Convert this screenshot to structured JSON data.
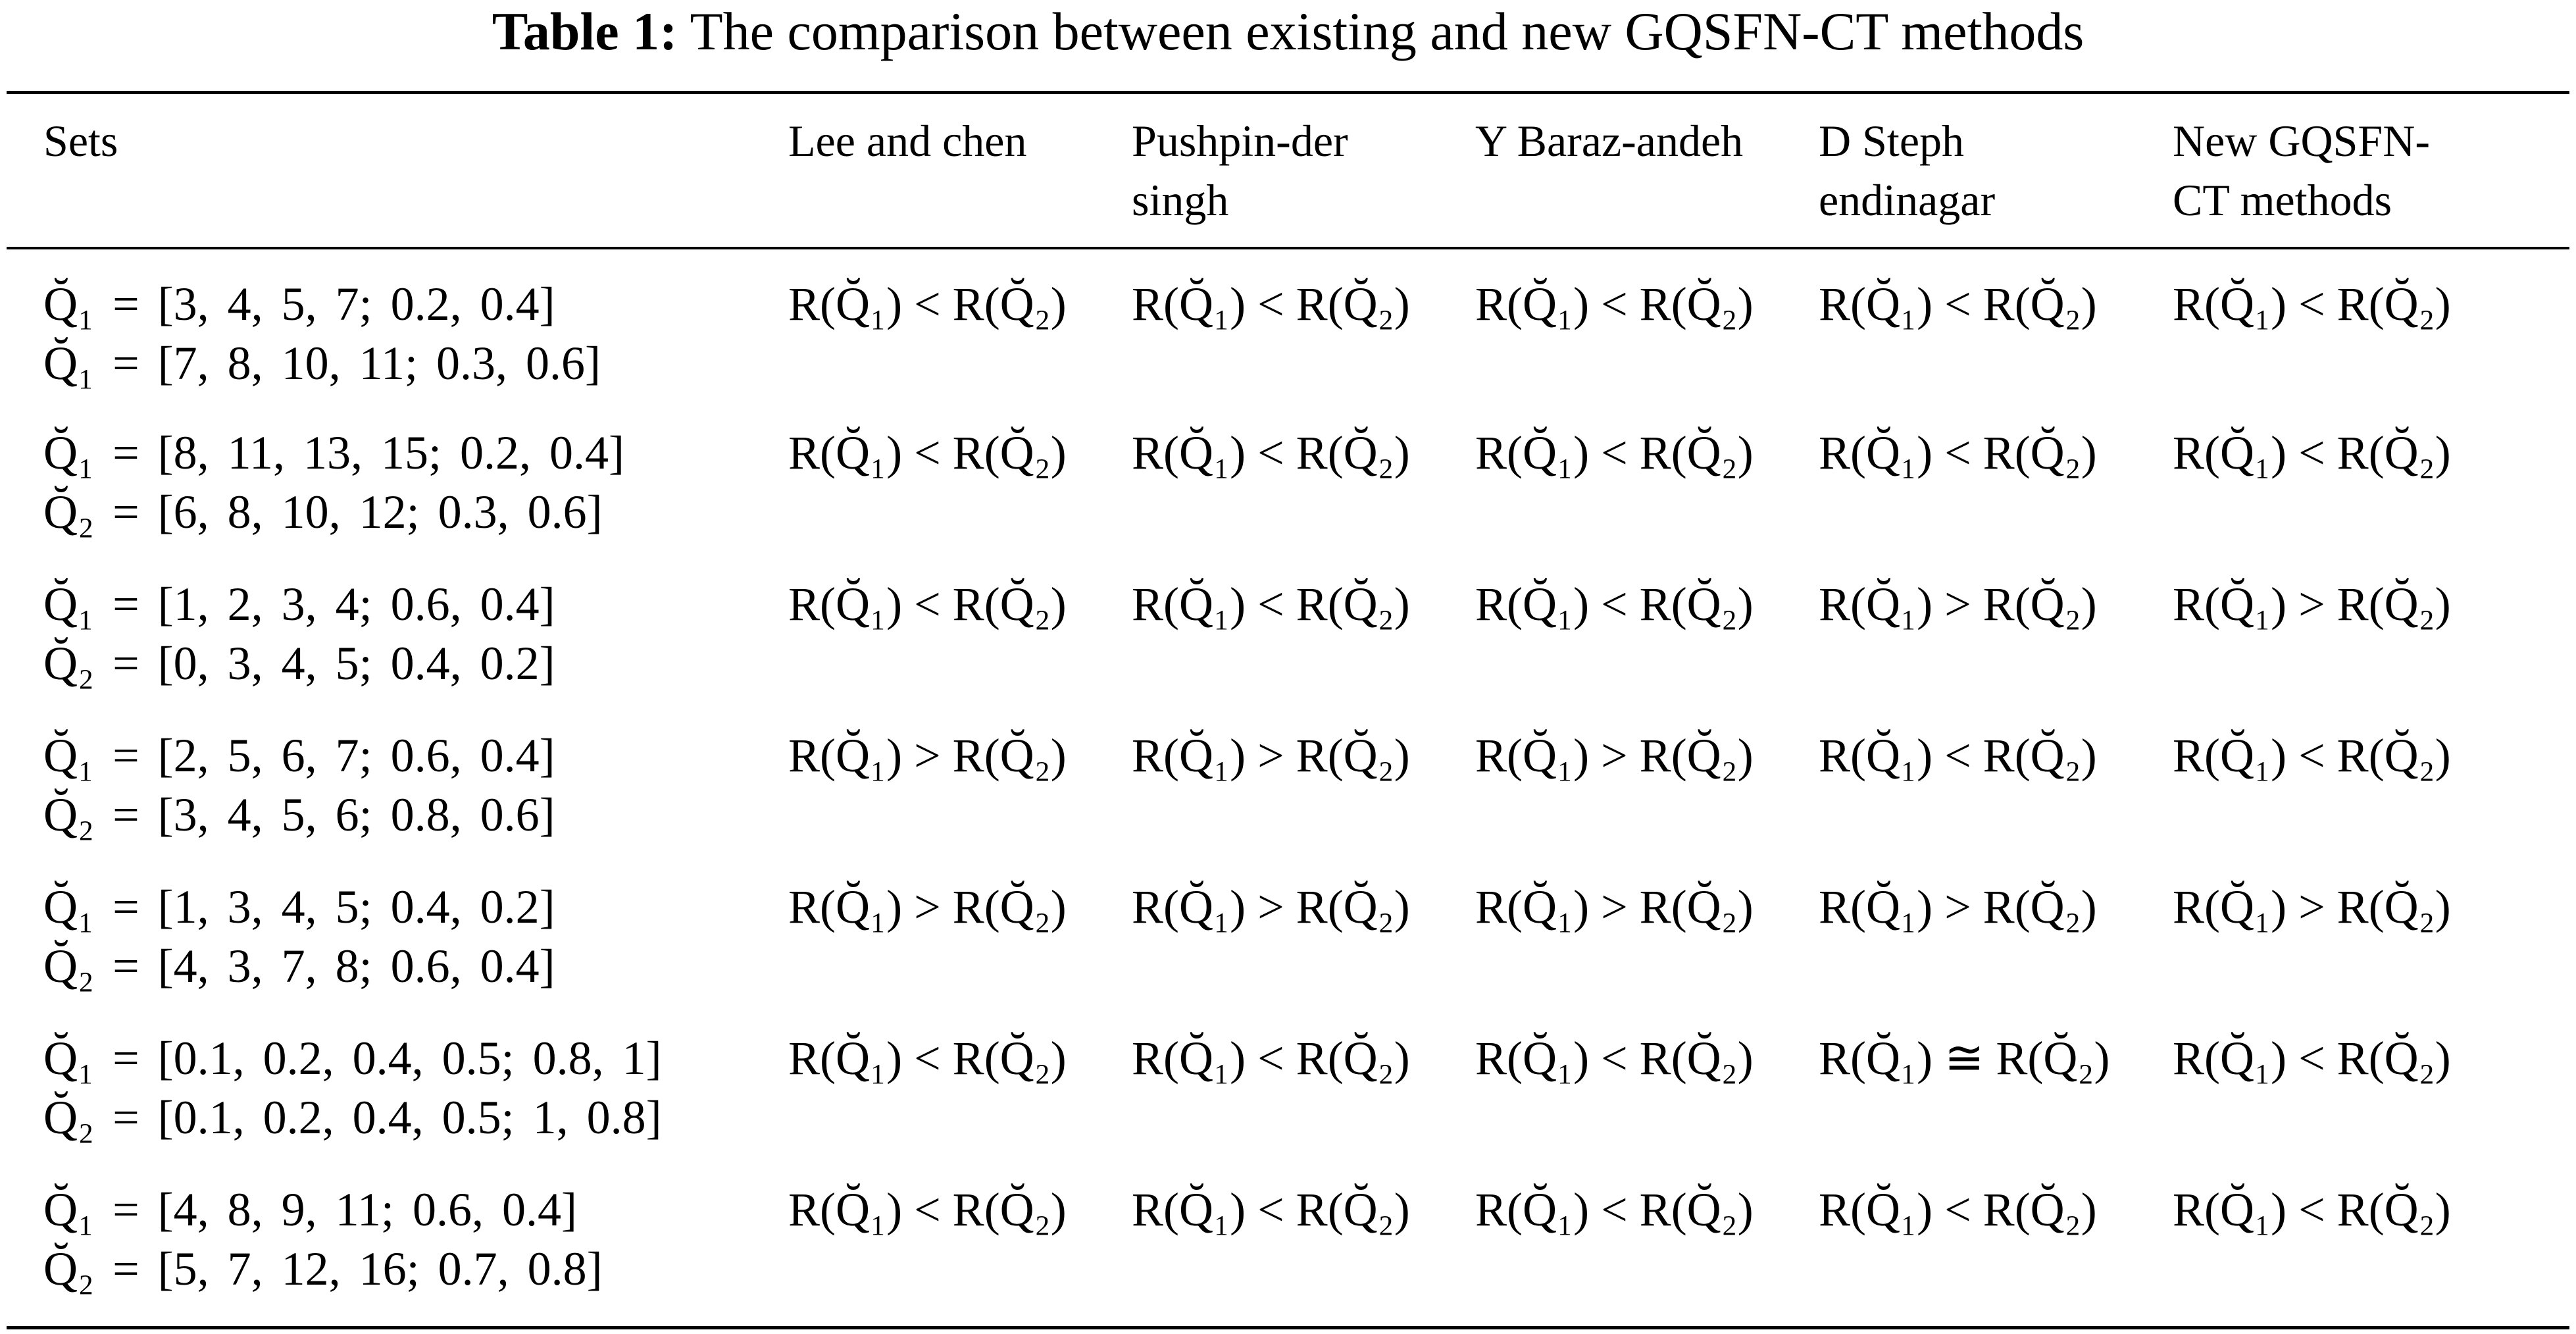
{
  "caption": {
    "label": "Table 1:",
    "text": " The comparison between existing and new GQSFN-CT methods"
  },
  "columns": [
    "Sets",
    "Lee and chen",
    "Pushpin-der singh",
    "Y Baraz-andeh",
    "D Steph endinagar",
    "New GQSFN-CT methods"
  ],
  "rows": [
    {
      "set1": "Q̆₁ = [3,  4,  5,  7; 0.2,  0.4]",
      "set2": "Q̆₁ = [7,  8,  10,  11; 0.3,  0.6]",
      "relations": [
        "R(Q̆₁) < R(Q̆₂)",
        "R(Q̆₁) < R(Q̆₂)",
        "R(Q̆₁) < R(Q̆₂)",
        "R(Q̆₁) < R(Q̆₂)",
        "R(Q̆₁) < R(Q̆₂)"
      ]
    },
    {
      "set1": "Q̆₁ = [8,  11,  13,  15; 0.2,  0.4]",
      "set2": "Q̆₂ = [6,  8,  10,  12; 0.3,  0.6]",
      "relations": [
        "R(Q̆₁) < R(Q̆₂)",
        "R(Q̆₁) < R(Q̆₂)",
        "R(Q̆₁) < R(Q̆₂)",
        "R(Q̆₁) < R(Q̆₂)",
        "R(Q̆₁) < R(Q̆₂)"
      ]
    },
    {
      "set1": "Q̆₁ = [1,  2,  3,  4; 0.6,  0.4]",
      "set2": "Q̆₂ = [0,  3,  4,  5; 0.4,  0.2]",
      "relations": [
        "R(Q̆₁) < R(Q̆₂)",
        "R(Q̆₁) < R(Q̆₂)",
        "R(Q̆₁) < R(Q̆₂)",
        "R(Q̆₁) > R(Q̆₂)",
        "R(Q̆₁) > R(Q̆₂)"
      ]
    },
    {
      "set1": "Q̆₁ = [2,  5,  6,  7; 0.6,  0.4]",
      "set2": "Q̆₂ = [3,  4,  5,  6; 0.8,  0.6]",
      "relations": [
        "R(Q̆₁) > R(Q̆₂)",
        "R(Q̆₁) > R(Q̆₂)",
        "R(Q̆₁) > R(Q̆₂)",
        "R(Q̆₁) < R(Q̆₂)",
        "R(Q̆₁) < R(Q̆₂)"
      ]
    },
    {
      "set1": "Q̆₁ = [1,  3,  4,  5; 0.4,  0.2]",
      "set2": "Q̆₂ = [4,  3,  7,  8; 0.6,  0.4]",
      "relations": [
        "R(Q̆₁) > R(Q̆₂)",
        "R(Q̆₁) > R(Q̆₂)",
        "R(Q̆₁) > R(Q̆₂)",
        "R(Q̆₁) > R(Q̆₂)",
        "R(Q̆₁) > R(Q̆₂)"
      ]
    },
    {
      "set1": "Q̆₁ = [0.1,  0.2,  0.4,  0.5; 0.8,  1]",
      "set2": "Q̆₂ = [0.1,  0.2,  0.4,  0.5; 1,  0.8]",
      "relations": [
        "R(Q̆₁) < R(Q̆₂)",
        "R(Q̆₁) < R(Q̆₂)",
        "R(Q̆₁) < R(Q̆₂)",
        "R(Q̆₁) ≅ R(Q̆₂)",
        "R(Q̆₁) < R(Q̆₂)"
      ]
    },
    {
      "set1": "Q̆₁ = [4,  8,  9,  11; 0.6,  0.4]",
      "set2": "Q̆₂ = [5,  7,  12,  16; 0.7,  0.8]",
      "relations": [
        "R(Q̆₁) < R(Q̆₂)",
        "R(Q̆₁) < R(Q̆₂)",
        "R(Q̆₁) < R(Q̆₂)",
        "R(Q̆₁) < R(Q̆₂)",
        "R(Q̆₁) < R(Q̆₂)"
      ]
    }
  ]
}
